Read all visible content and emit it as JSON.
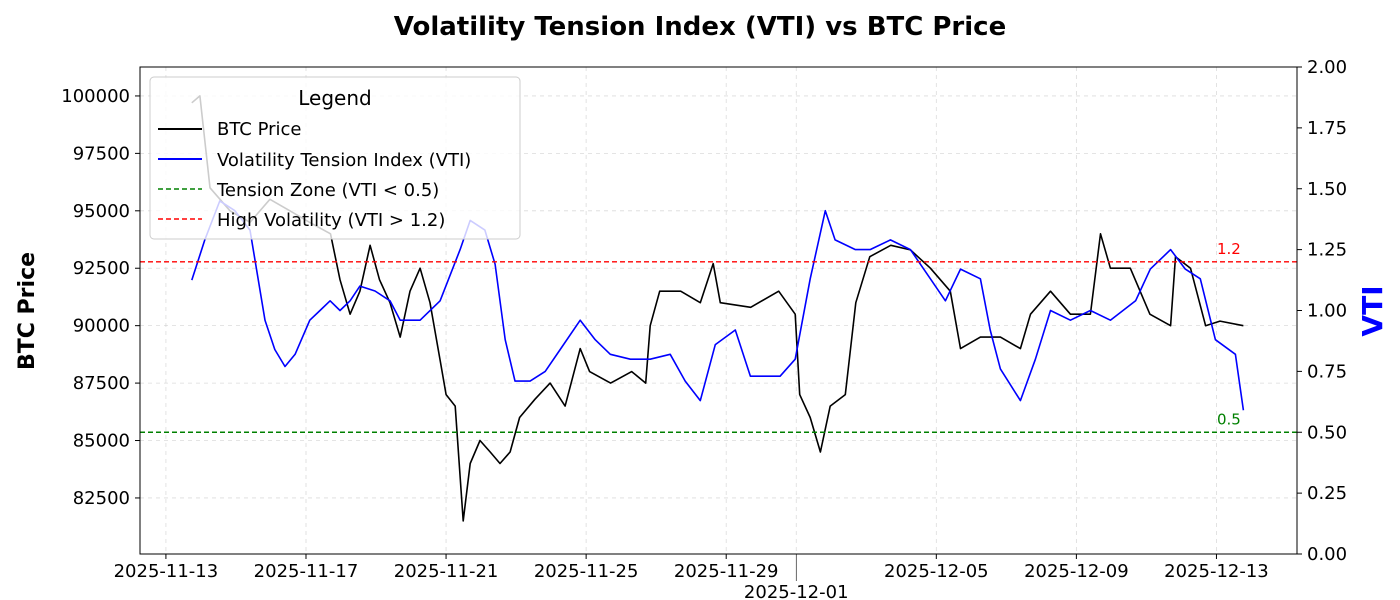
{
  "chart_data": {
    "type": "line",
    "title": "Volatility Tension Index (VTI) vs BTC Price",
    "xlabel": "",
    "ylabel_left": "BTC Price",
    "ylabel_right": "VTI",
    "x_unit": "days since 2025-11-13",
    "xlim": [
      -0.74,
      32.3
    ],
    "ylim_left": [
      80060,
      101260
    ],
    "ylim_right": [
      0,
      2.0
    ],
    "grid": true,
    "x_ticks": [
      {
        "value": 0,
        "label": "2025-11-13"
      },
      {
        "value": 4,
        "label": "2025-11-17"
      },
      {
        "value": 8,
        "label": "2025-11-21"
      },
      {
        "value": 12,
        "label": "2025-11-25"
      },
      {
        "value": 16,
        "label": "2025-11-29"
      },
      {
        "value": 18,
        "label": "2025-12-01"
      },
      {
        "value": 22,
        "label": "2025-12-05"
      },
      {
        "value": 26,
        "label": "2025-12-09"
      },
      {
        "value": 30,
        "label": "2025-12-13"
      }
    ],
    "y_ticks_left": [
      "82500",
      "85000",
      "87500",
      "90000",
      "92500",
      "95000",
      "97500",
      "100000"
    ],
    "y_ticks_right": [
      "0.00",
      "0.25",
      "0.50",
      "0.75",
      "1.00",
      "1.25",
      "1.50",
      "1.75",
      "2.00"
    ],
    "legend": {
      "title": "Legend",
      "placement": "top-left",
      "entries": [
        "BTC Price",
        "Volatility Tension Index (VTI)",
        "Tension Zone (VTI < 0.5)",
        "High Volatility (VTI > 1.2)"
      ]
    },
    "thresholds": [
      {
        "value": 1.2,
        "label": "1.2",
        "color": "#ff0000"
      },
      {
        "value": 0.5,
        "label": "0.5",
        "color": "#008000"
      }
    ],
    "series": [
      {
        "name": "BTC Price",
        "axis": "left",
        "color": "#000000",
        "x": [
          0.74,
          0.97,
          1.26,
          1.83,
          2.4,
          2.97,
          3.54,
          4.1,
          4.7,
          4.97,
          5.26,
          5.54,
          5.83,
          6.1,
          6.4,
          6.69,
          6.97,
          7.26,
          7.54,
          7.83,
          8.0,
          8.26,
          8.49,
          8.69,
          8.97,
          9.26,
          9.54,
          9.83,
          10.1,
          10.54,
          10.97,
          11.4,
          11.83,
          12.1,
          12.7,
          13.3,
          13.7,
          13.83,
          14.1,
          14.7,
          15.26,
          15.63,
          15.83,
          16.7,
          17.5,
          17.97,
          18.1,
          18.4,
          18.69,
          18.97,
          19.4,
          19.7,
          20.1,
          20.7,
          21.26,
          21.83,
          22.4,
          22.69,
          23.26,
          23.83,
          24.4,
          24.69,
          25.26,
          25.83,
          26.4,
          26.69,
          26.97,
          27.54,
          28.1,
          28.69,
          28.83,
          29.26,
          29.69,
          30.1,
          30.77
        ],
        "y": [
          99700,
          100000,
          96000,
          95000,
          94500,
          95500,
          95000,
          94500,
          94000,
          92000,
          90500,
          91500,
          93500,
          92000,
          91000,
          89500,
          91500,
          92500,
          91000,
          88500,
          87000,
          86500,
          81500,
          84000,
          85000,
          84500,
          84000,
          84500,
          86000,
          86800,
          87500,
          86500,
          89000,
          88000,
          87500,
          88000,
          87500,
          90000,
          91500,
          91500,
          91000,
          92700,
          91000,
          90800,
          91500,
          90500,
          87000,
          86000,
          84500,
          86500,
          87000,
          91000,
          93000,
          93500,
          93300,
          92500,
          91500,
          89000,
          89500,
          89500,
          89000,
          90500,
          91500,
          90500,
          90500,
          94000,
          92500,
          92500,
          90500,
          90000,
          93000,
          92500,
          90000,
          90200,
          90000
        ]
      },
      {
        "name": "Volatility Tension Index (VTI)",
        "axis": "right",
        "color": "#0000ff",
        "x": [
          0.74,
          1.11,
          1.54,
          1.97,
          2.4,
          2.83,
          3.11,
          3.4,
          3.69,
          4.11,
          4.4,
          4.69,
          4.97,
          5.26,
          5.54,
          5.97,
          6.4,
          6.69,
          7.26,
          7.83,
          8.4,
          8.69,
          9.11,
          9.4,
          9.69,
          9.97,
          10.4,
          10.83,
          11.26,
          11.83,
          12.26,
          12.69,
          13.26,
          13.83,
          14.4,
          14.83,
          15.26,
          15.69,
          16.26,
          16.69,
          17.54,
          17.97,
          18.4,
          18.83,
          19.11,
          19.69,
          20.11,
          20.69,
          21.26,
          21.83,
          22.26,
          22.69,
          23.26,
          23.54,
          23.83,
          24.4,
          24.83,
          25.26,
          25.83,
          26.4,
          26.97,
          27.69,
          28.11,
          28.69,
          29.11,
          29.54,
          29.97,
          30.54,
          30.77
        ],
        "y": [
          1.125,
          1.29,
          1.45,
          1.41,
          1.33,
          0.96,
          0.84,
          0.77,
          0.82,
          0.96,
          1.0,
          1.04,
          1.0,
          1.04,
          1.1,
          1.08,
          1.04,
          0.96,
          0.96,
          1.04,
          1.25,
          1.37,
          1.33,
          1.19,
          0.88,
          0.71,
          0.71,
          0.75,
          0.84,
          0.96,
          0.88,
          0.82,
          0.8,
          0.8,
          0.82,
          0.71,
          0.63,
          0.86,
          0.92,
          0.73,
          0.73,
          0.8,
          1.13,
          1.41,
          1.29,
          1.25,
          1.25,
          1.29,
          1.25,
          1.13,
          1.04,
          1.17,
          1.13,
          0.92,
          0.76,
          0.63,
          0.8,
          1.0,
          0.96,
          1.0,
          0.96,
          1.04,
          1.17,
          1.25,
          1.17,
          1.13,
          0.88,
          0.82,
          0.59
        ]
      }
    ]
  }
}
